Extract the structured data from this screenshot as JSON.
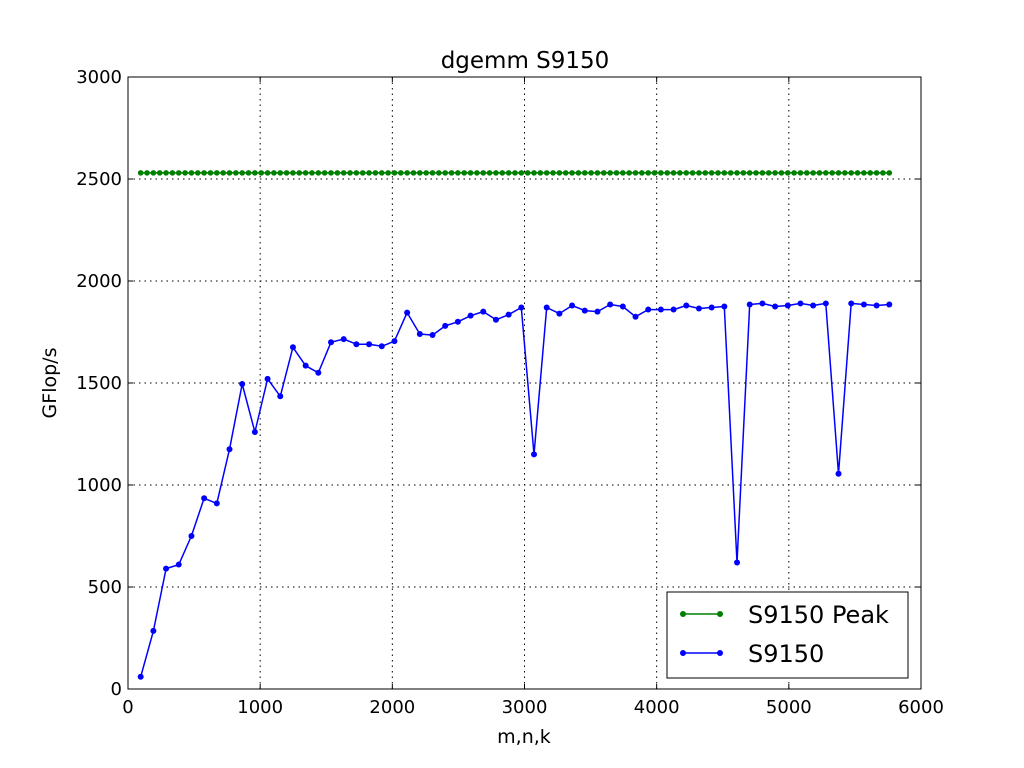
{
  "chart_data": {
    "type": "line",
    "title": "dgemm S9150",
    "xlabel": "m,n,k",
    "ylabel": "GFlop/s",
    "xlim": [
      0,
      6000
    ],
    "ylim": [
      0,
      3000
    ],
    "xticks": [
      0,
      1000,
      2000,
      3000,
      4000,
      5000,
      6000
    ],
    "yticks": [
      0,
      500,
      1000,
      1500,
      2000,
      2500,
      3000
    ],
    "xtick_labels": [
      "0",
      "1000",
      "2000",
      "3000",
      "4000",
      "5000",
      "6000"
    ],
    "ytick_labels": [
      "0",
      "500",
      "1000",
      "1500",
      "2000",
      "2500",
      "3000"
    ],
    "grid": true,
    "legend_position": "lower-right",
    "x": [
      96,
      192,
      288,
      384,
      480,
      576,
      672,
      768,
      864,
      960,
      1056,
      1152,
      1248,
      1344,
      1440,
      1536,
      1632,
      1728,
      1824,
      1920,
      2016,
      2112,
      2208,
      2304,
      2400,
      2496,
      2592,
      2688,
      2784,
      2880,
      2976,
      3072,
      3168,
      3264,
      3360,
      3456,
      3552,
      3648,
      3744,
      3840,
      3936,
      4032,
      4128,
      4224,
      4320,
      4416,
      4512,
      4608,
      4704,
      4800,
      4896,
      4992,
      5088,
      5184,
      5280,
      5376,
      5472,
      5568,
      5664,
      5760
    ],
    "series": [
      {
        "name": "S9150 Peak",
        "color": "#008000",
        "values": [
          2530,
          2530,
          2530,
          2530,
          2530,
          2530,
          2530,
          2530,
          2530,
          2530,
          2530,
          2530,
          2530,
          2530,
          2530,
          2530,
          2530,
          2530,
          2530,
          2530,
          2530,
          2530,
          2530,
          2530,
          2530,
          2530,
          2530,
          2530,
          2530,
          2530,
          2530,
          2530,
          2530,
          2530,
          2530,
          2530,
          2530,
          2530,
          2530,
          2530,
          2530,
          2530,
          2530,
          2530,
          2530,
          2530,
          2530,
          2530,
          2530,
          2530,
          2530,
          2530,
          2530,
          2530,
          2530,
          2530,
          2530,
          2530,
          2530,
          2530
        ],
        "peak_marker_x": [
          96,
          144,
          192,
          240,
          288,
          336,
          384,
          432,
          480,
          528,
          576,
          624,
          672,
          720,
          768,
          816,
          864,
          912,
          960,
          1008,
          1056,
          1104,
          1152,
          1200,
          1248,
          1296,
          1344,
          1392,
          1440,
          1488,
          1536,
          1584,
          1632,
          1680,
          1728,
          1776,
          1824,
          1872,
          1920,
          1968,
          2016,
          2064,
          2112,
          2160,
          2208,
          2256,
          2304,
          2352,
          2400,
          2448,
          2496,
          2544,
          2592,
          2640,
          2688,
          2736,
          2784,
          2832,
          2880,
          2928,
          2976,
          3024,
          3072,
          3120,
          3168,
          3216,
          3264,
          3312,
          3360,
          3408,
          3456,
          3504,
          3552,
          3600,
          3648,
          3696,
          3744,
          3792,
          3840,
          3888,
          3936,
          3984,
          4032,
          4080,
          4128,
          4176,
          4224,
          4272,
          4320,
          4368,
          4416,
          4464,
          4512,
          4560,
          4608,
          4656,
          4704,
          4752,
          4800,
          4848,
          4896,
          4944,
          4992,
          5040,
          5088,
          5136,
          5184,
          5232,
          5280,
          5328,
          5376,
          5424,
          5472,
          5520,
          5568,
          5616,
          5664,
          5712,
          5760
        ]
      },
      {
        "name": "S9150",
        "color": "#0000ff",
        "values": [
          60,
          285,
          590,
          610,
          750,
          935,
          910,
          1175,
          1495,
          1260,
          1520,
          1435,
          1675,
          1585,
          1550,
          1700,
          1715,
          1690,
          1690,
          1680,
          1705,
          1845,
          1740,
          1735,
          1780,
          1800,
          1830,
          1850,
          1810,
          1835,
          1870,
          1150,
          1870,
          1840,
          1880,
          1855,
          1850,
          1885,
          1875,
          1825,
          1860,
          1860,
          1860,
          1880,
          1865,
          1870,
          1875,
          620,
          1885,
          1890,
          1875,
          1880,
          1890,
          1880,
          1890,
          1055,
          1890,
          1885,
          1880,
          1885
        ]
      }
    ]
  }
}
